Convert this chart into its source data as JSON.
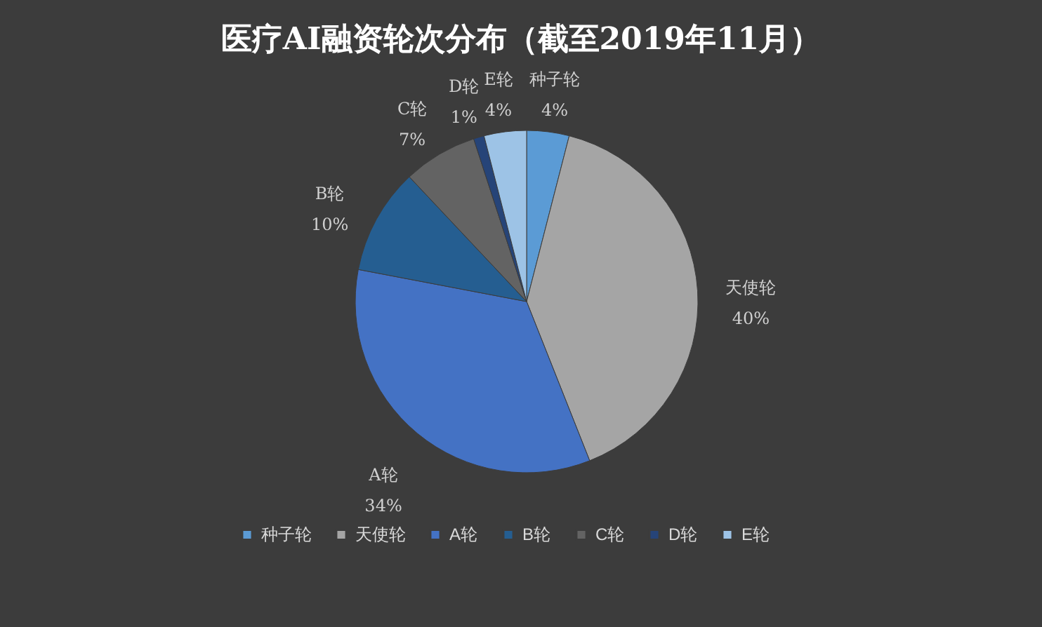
{
  "chart_data": {
    "type": "pie",
    "title": "医疗AI融资轮次分布（截至2019年11月）",
    "categories": [
      "种子轮",
      "天使轮",
      "A轮",
      "B轮",
      "C轮",
      "D轮",
      "E轮"
    ],
    "values": [
      4,
      40,
      34,
      10,
      7,
      1,
      4
    ],
    "colors": [
      "#5b9bd5",
      "#a5a5a5",
      "#4472c4",
      "#255e91",
      "#636363",
      "#264478",
      "#9dc3e6"
    ],
    "value_labels": [
      "4%",
      "40%",
      "34%",
      "10%",
      "7%",
      "1%",
      "4%"
    ],
    "legend": "bottom"
  }
}
